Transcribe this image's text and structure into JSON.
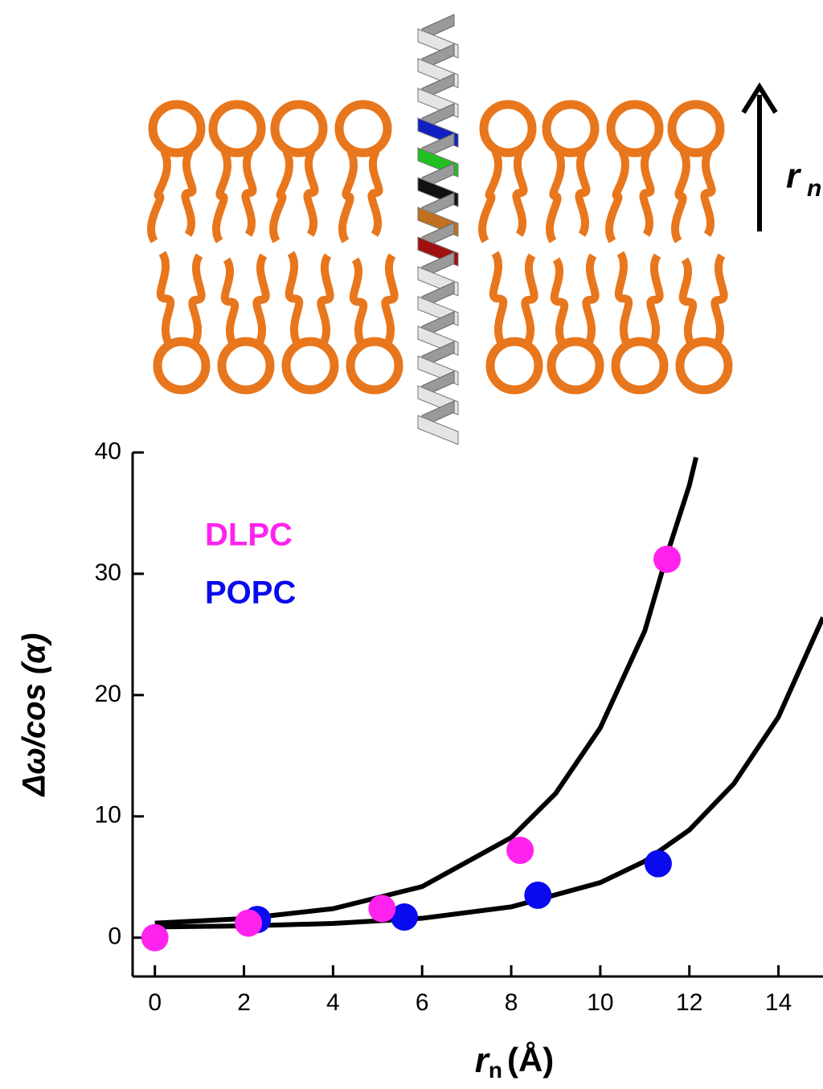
{
  "diagram": {
    "arrow_label": {
      "symbol": "r",
      "subscript": "n"
    }
  },
  "chart_data": {
    "type": "scatter",
    "ylabel": "Δω/cos (α)",
    "xlabel": {
      "symbol": "r",
      "subscript": "n",
      "unit": "(Å)"
    },
    "series": [
      {
        "name": "DLPC",
        "color": "#ff22ee",
        "x": [
          0,
          2.1,
          5.1,
          8.2,
          11.5
        ],
        "values": [
          0,
          1.2,
          2.4,
          7.2,
          31.2
        ]
      },
      {
        "name": "POPC",
        "color": "#0a0aee",
        "x": [
          2.3,
          5.6,
          8.6,
          11.3
        ],
        "values": [
          1.5,
          1.7,
          3.5,
          6.1
        ]
      }
    ],
    "fits": [
      {
        "color": "#000000",
        "x": [
          0,
          2,
          4,
          6,
          8,
          9,
          10,
          11,
          11.5,
          12,
          12.15
        ],
        "values": [
          1.2,
          1.57,
          2.39,
          4.21,
          8.25,
          11.9,
          17.3,
          25.3,
          31.6,
          37.3,
          39.6
        ]
      },
      {
        "color": "#000000",
        "x": [
          0,
          2,
          4,
          6,
          8,
          10,
          11,
          12,
          13,
          14,
          15
        ],
        "values": [
          0.88,
          0.97,
          1.17,
          1.6,
          2.54,
          4.54,
          6.3,
          8.88,
          12.7,
          18.2,
          26.4
        ]
      }
    ],
    "xlim": [
      -0.5,
      15
    ],
    "ylim": [
      -3.2,
      40
    ],
    "xticks": [
      0,
      2,
      4,
      6,
      8,
      10,
      12,
      14
    ],
    "yticks": [
      0,
      10,
      20,
      30,
      40
    ],
    "legend": "upper left"
  }
}
